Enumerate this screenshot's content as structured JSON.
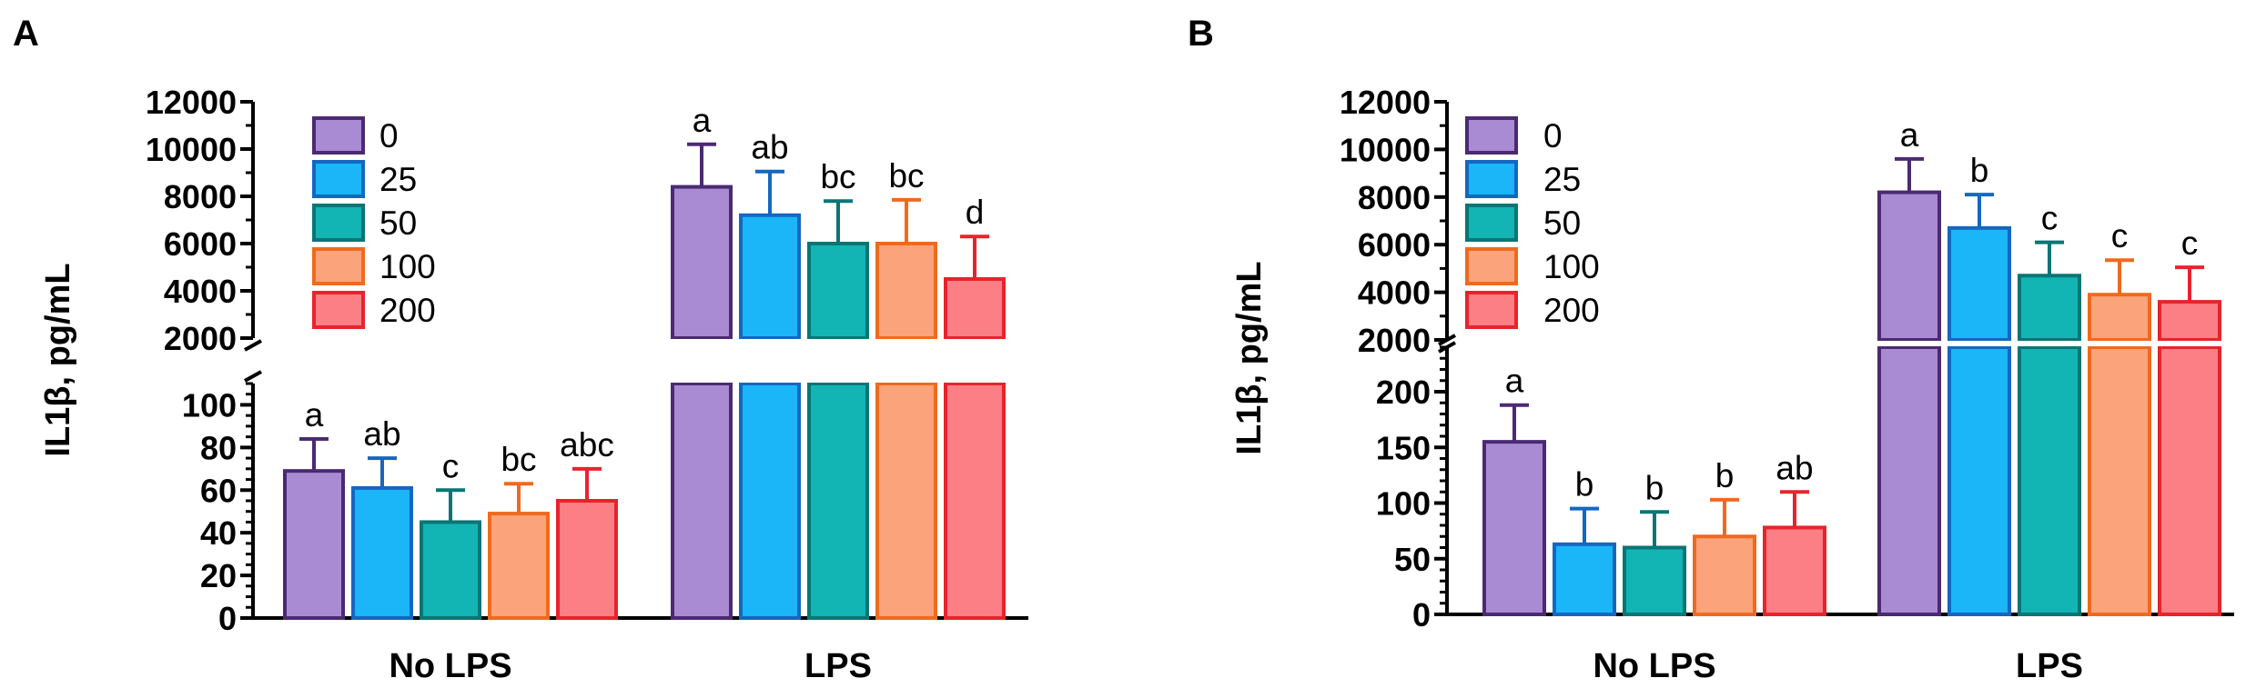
{
  "chart_data": [
    {
      "panel": "A",
      "type": "bar",
      "ylabel": "IL1β, pg/mL",
      "categories": [
        "No LPS",
        "LPS"
      ],
      "legend": [
        "0",
        "25",
        "50",
        "100",
        "200"
      ],
      "colors": {
        "fill": [
          "#a98bd4",
          "#1ab6f7",
          "#12b5b3",
          "#fba37b",
          "#fb7f84"
        ],
        "stroke": [
          "#4b2a72",
          "#1567c0",
          "#0a7575",
          "#ef6a1e",
          "#e8232c"
        ]
      },
      "y_axis": {
        "segments": [
          {
            "range": [
              0,
              110
            ],
            "ticks": [
              "0",
              "20",
              "40",
              "60",
              "80",
              "100"
            ],
            "tick_values": [
              0,
              20,
              40,
              60,
              80,
              100
            ],
            "minor_step": 5
          },
          {
            "range": [
              2000,
              12000
            ],
            "ticks": [
              "2000",
              "4000",
              "6000",
              "8000",
              "10000",
              "12000"
            ],
            "tick_values": [
              2000,
              4000,
              6000,
              8000,
              10000,
              12000
            ],
            "minor_step": 1000
          }
        ]
      },
      "series": [
        {
          "name": "0",
          "values": [
            69,
            8400
          ],
          "errors": [
            15,
            1800
          ]
        },
        {
          "name": "25",
          "values": [
            61,
            7200
          ],
          "errors": [
            14,
            1850
          ]
        },
        {
          "name": "50",
          "values": [
            45,
            6000
          ],
          "errors": [
            15,
            1800
          ]
        },
        {
          "name": "100",
          "values": [
            49,
            6000
          ],
          "errors": [
            14,
            1850
          ]
        },
        {
          "name": "200",
          "values": [
            55,
            4500
          ],
          "errors": [
            15,
            1800
          ]
        }
      ],
      "significance": [
        [
          "a",
          "ab",
          "c",
          "bc",
          "abc"
        ],
        [
          "a",
          "ab",
          "bc",
          "bc",
          "d"
        ]
      ]
    },
    {
      "panel": "B",
      "type": "bar",
      "ylabel": "IL1β, pg/mL",
      "categories": [
        "No LPS",
        "LPS"
      ],
      "legend": [
        "0",
        "25",
        "50",
        "100",
        "200"
      ],
      "colors": {
        "fill": [
          "#a98bd4",
          "#1ab6f7",
          "#12b5b3",
          "#fba37b",
          "#fb7f84"
        ],
        "stroke": [
          "#4b2a72",
          "#1567c0",
          "#0a7575",
          "#ef6a1e",
          "#e8232c"
        ]
      },
      "y_axis": {
        "segments": [
          {
            "range": [
              0,
              240
            ],
            "ticks": [
              "0",
              "50",
              "100",
              "150",
              "200"
            ],
            "tick_values": [
              0,
              50,
              100,
              150,
              200
            ],
            "minor_step": 10
          },
          {
            "range": [
              2000,
              12000
            ],
            "ticks": [
              "2000",
              "4000",
              "6000",
              "8000",
              "10000",
              "12000"
            ],
            "tick_values": [
              2000,
              4000,
              6000,
              8000,
              10000,
              12000
            ],
            "minor_step": 1000
          }
        ]
      },
      "series": [
        {
          "name": "0",
          "values": [
            155,
            8200
          ],
          "errors": [
            33,
            1400
          ]
        },
        {
          "name": "25",
          "values": [
            63,
            6700
          ],
          "errors": [
            32,
            1400
          ]
        },
        {
          "name": "50",
          "values": [
            60,
            4700
          ],
          "errors": [
            32,
            1400
          ]
        },
        {
          "name": "100",
          "values": [
            70,
            3900
          ],
          "errors": [
            33,
            1450
          ]
        },
        {
          "name": "200",
          "values": [
            78,
            3600
          ],
          "errors": [
            32,
            1450
          ]
        }
      ],
      "significance": [
        [
          "a",
          "b",
          "b",
          "b",
          "ab"
        ],
        [
          "a",
          "b",
          "c",
          "c",
          "c"
        ]
      ]
    }
  ]
}
